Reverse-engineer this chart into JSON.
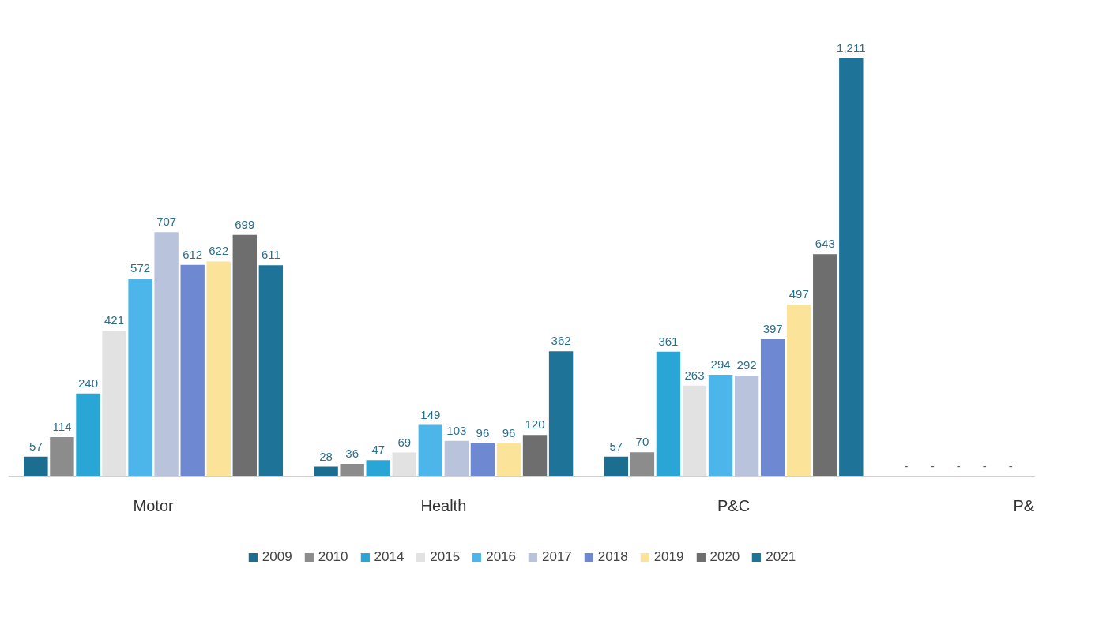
{
  "chart_data": {
    "type": "bar",
    "categories": [
      "Motor",
      "Health",
      "P&C",
      "P&"
    ],
    "series": [
      {
        "name": "2009",
        "color": "#1b6e8f",
        "values": [
          57,
          28,
          57,
          null
        ],
        "value_labels": [
          "57",
          "28",
          "57",
          "-"
        ]
      },
      {
        "name": "2010",
        "color": "#8c8c8c",
        "values": [
          114,
          36,
          70,
          null
        ],
        "value_labels": [
          "114",
          "36",
          "70",
          "-"
        ]
      },
      {
        "name": "2014",
        "color": "#29a6d6",
        "values": [
          240,
          47,
          361,
          null
        ],
        "value_labels": [
          "240",
          "47",
          "361",
          "-"
        ]
      },
      {
        "name": "2015",
        "color": "#e2e2e2",
        "values": [
          421,
          69,
          263,
          null
        ],
        "value_labels": [
          "421",
          "69",
          "263",
          "-"
        ]
      },
      {
        "name": "2016",
        "color": "#4cb5ea",
        "values": [
          572,
          149,
          294,
          null
        ],
        "value_labels": [
          "572",
          "149",
          "294",
          "-"
        ]
      },
      {
        "name": "2017",
        "color": "#b9c3dc",
        "values": [
          707,
          103,
          292,
          null
        ],
        "value_labels": [
          "707",
          "103",
          "292",
          null
        ]
      },
      {
        "name": "2018",
        "color": "#6f88d2",
        "values": [
          612,
          96,
          397,
          null
        ],
        "value_labels": [
          "612",
          "96",
          "397",
          null
        ]
      },
      {
        "name": "2019",
        "color": "#fbe39a",
        "values": [
          622,
          96,
          497,
          null
        ],
        "value_labels": [
          "622",
          "96",
          "497",
          null
        ]
      },
      {
        "name": "2020",
        "color": "#6e6e6e",
        "values": [
          699,
          120,
          643,
          null
        ],
        "value_labels": [
          "699",
          "120",
          "643",
          null
        ]
      },
      {
        "name": "2021",
        "color": "#1d7398",
        "values": [
          611,
          362,
          1211,
          null
        ],
        "value_labels": [
          "611",
          "362",
          "1,211",
          null
        ]
      }
    ],
    "legend": "bottom",
    "grid": false
  }
}
